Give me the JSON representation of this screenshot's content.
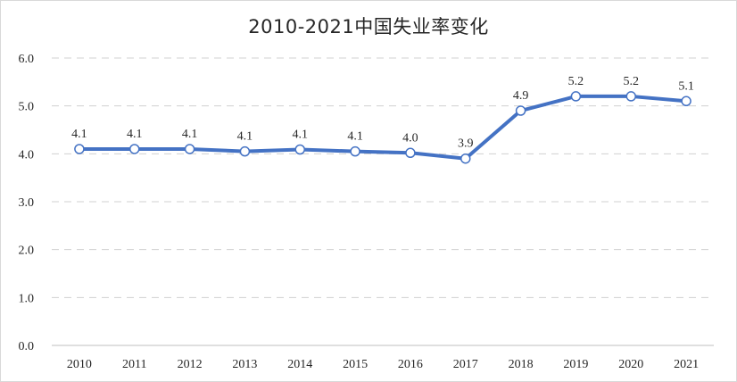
{
  "chart_data": {
    "type": "line",
    "title": "2010-2021中国失业率变化",
    "xlabel": "",
    "ylabel": "",
    "x": [
      "2010",
      "2011",
      "2012",
      "2013",
      "2014",
      "2015",
      "2016",
      "2017",
      "2018",
      "2019",
      "2020",
      "2021"
    ],
    "series": [
      {
        "values": [
          4.1,
          4.1,
          4.1,
          4.05,
          4.09,
          4.05,
          4.02,
          3.9,
          4.9,
          5.2,
          5.2,
          5.1
        ],
        "labels": [
          "4.1",
          "4.1",
          "4.1",
          "4.1",
          "4.1",
          "4.1",
          "4.0",
          "3.9",
          "4.9",
          "5.2",
          "5.2",
          "5.1"
        ]
      }
    ],
    "ylim": [
      0,
      6
    ],
    "yticks": [
      "0.0",
      "1.0",
      "2.0",
      "3.0",
      "4.0",
      "5.0",
      "6.0"
    ],
    "grid": true,
    "line_color": "#4472C4"
  }
}
